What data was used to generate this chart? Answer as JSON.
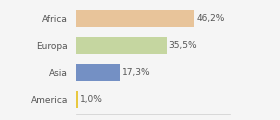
{
  "categories": [
    "Africa",
    "Europa",
    "Asia",
    "America"
  ],
  "values": [
    46.2,
    35.5,
    17.3,
    1.0
  ],
  "labels": [
    "46,2%",
    "35,5%",
    "17,3%",
    "1,0%"
  ],
  "bar_colors": [
    "#e8c49a",
    "#c5d6a0",
    "#7490c4",
    "#e8c840"
  ],
  "background_color": "#f5f5f5",
  "xlim": [
    0,
    60
  ],
  "label_fontsize": 6.5,
  "tick_fontsize": 6.5
}
